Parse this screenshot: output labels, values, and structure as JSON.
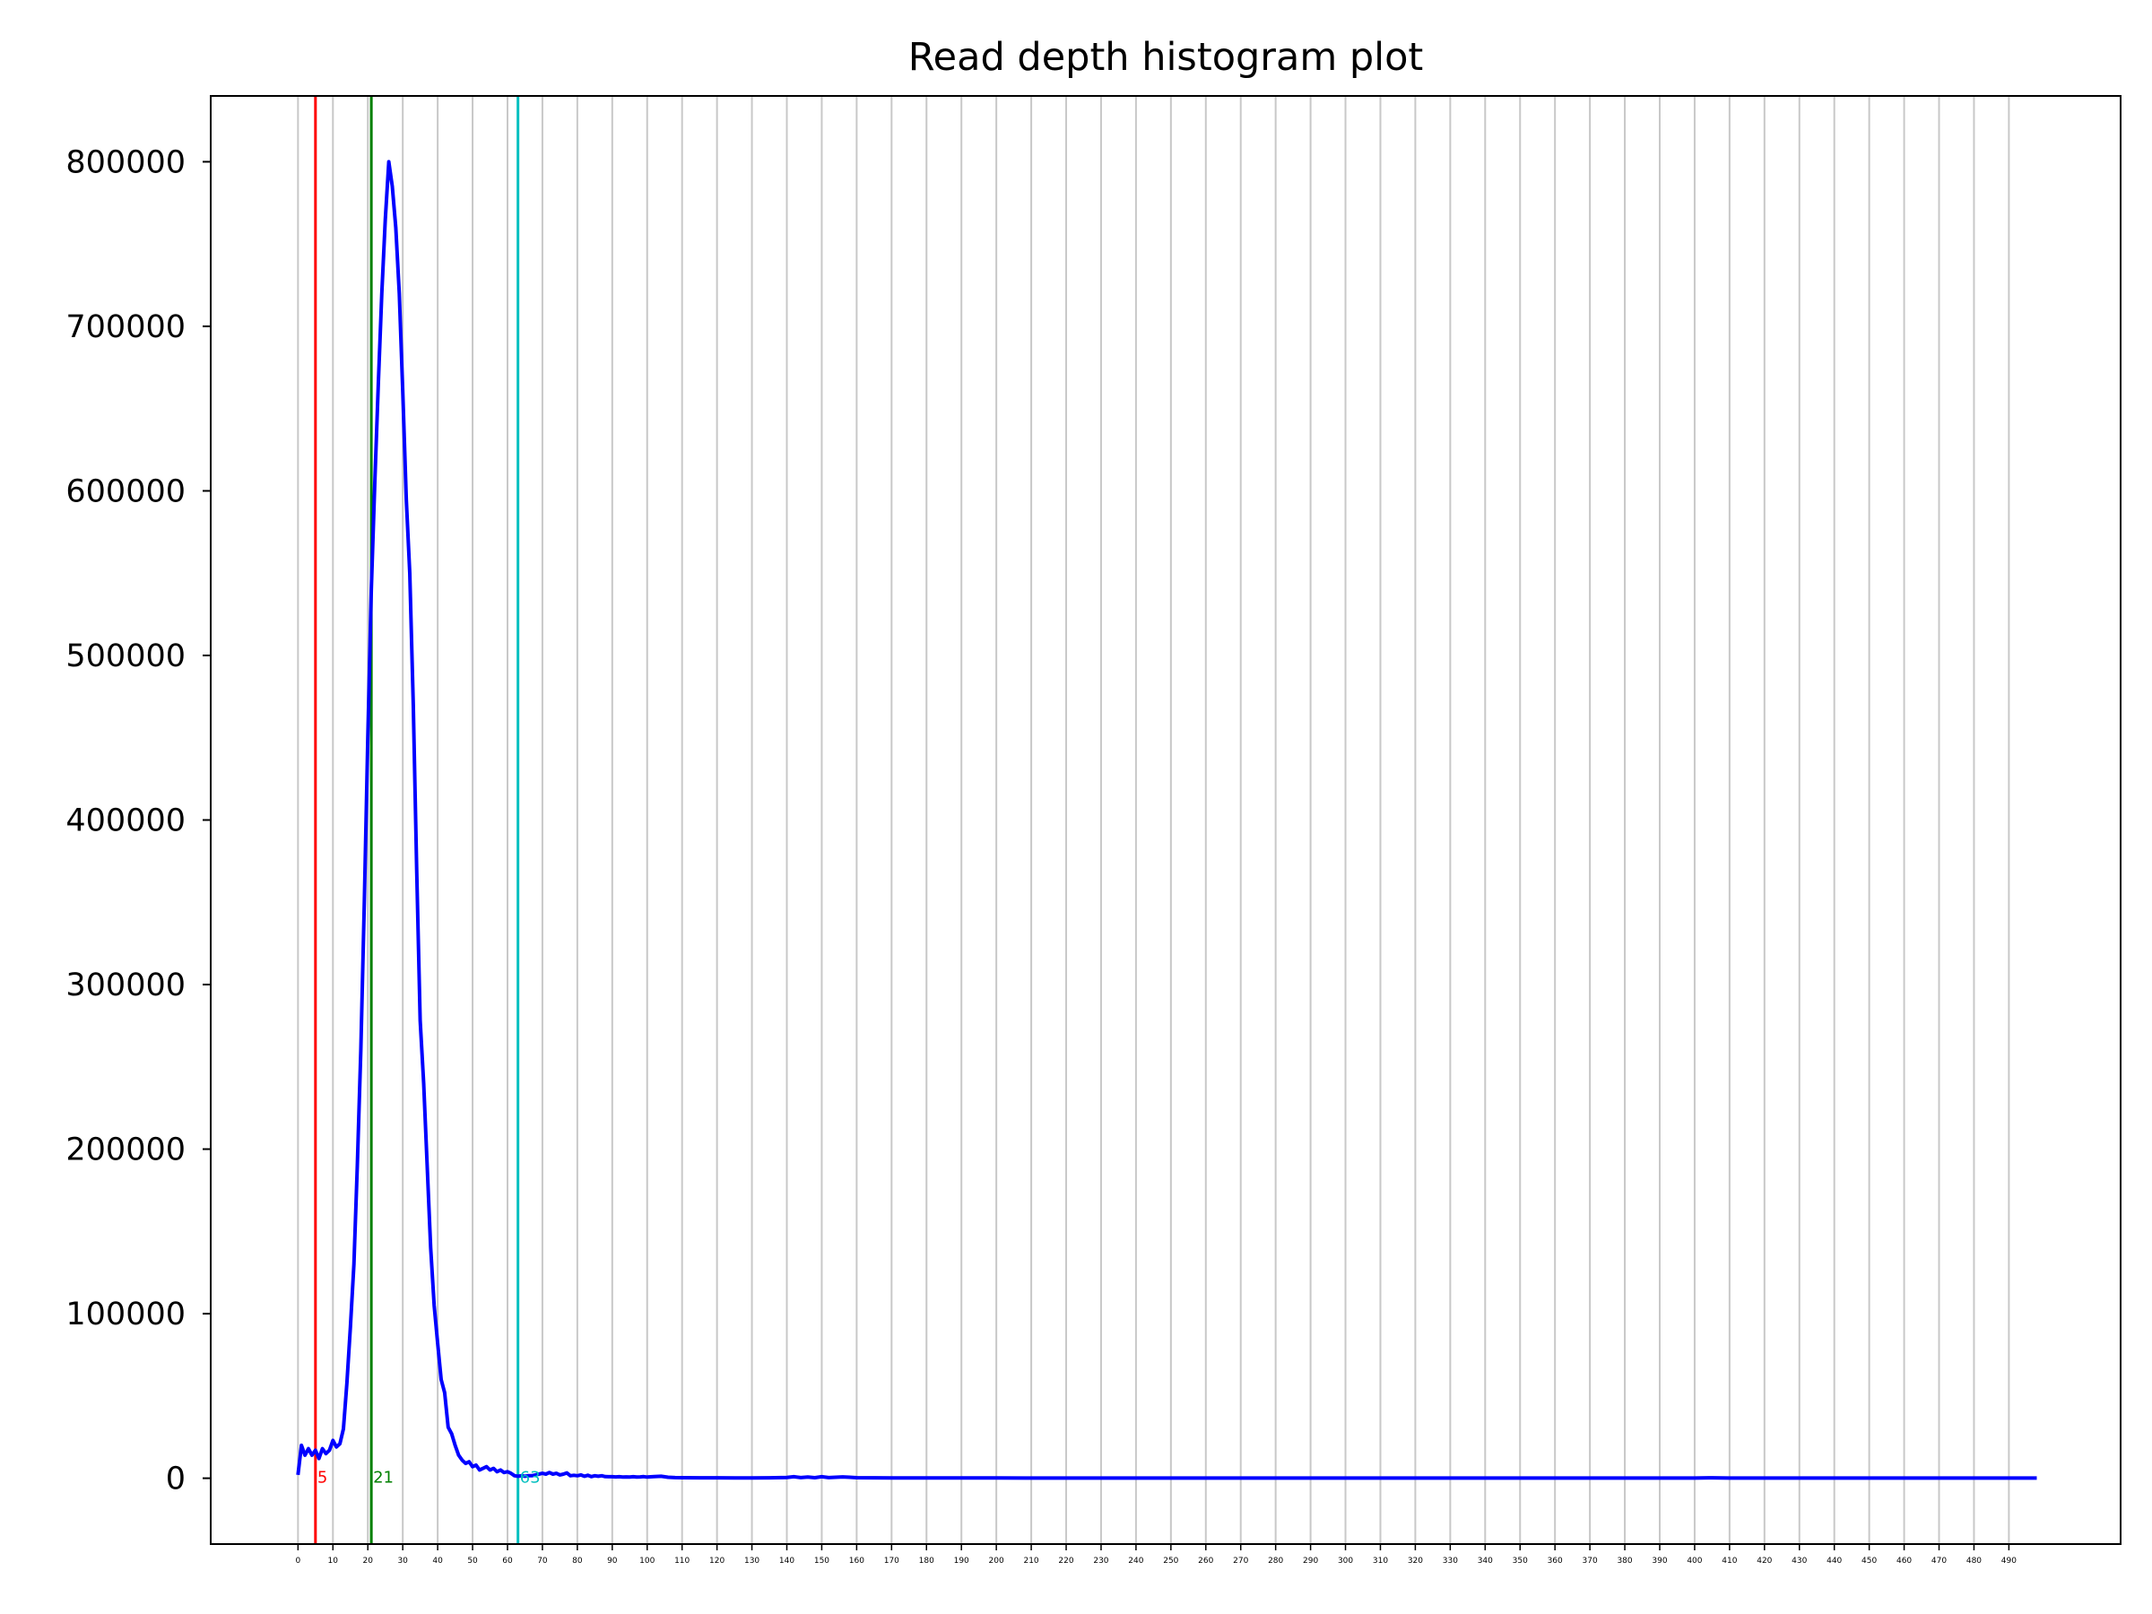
{
  "chart_data": {
    "type": "line",
    "title": "Read depth histogram plot",
    "xlabel": "",
    "ylabel": "",
    "xlim": [
      -25,
      522
    ],
    "ylim": [
      -40000,
      840000
    ],
    "grid": "x-only",
    "x_ticks": [
      0,
      10,
      20,
      30,
      40,
      50,
      60,
      70,
      80,
      90,
      100,
      110,
      120,
      130,
      140,
      150,
      160,
      170,
      180,
      190,
      200,
      210,
      220,
      230,
      240,
      250,
      260,
      270,
      280,
      290,
      300,
      310,
      320,
      330,
      340,
      350,
      360,
      370,
      380,
      390,
      400,
      410,
      420,
      430,
      440,
      450,
      460,
      470,
      480,
      490
    ],
    "y_ticks": [
      0,
      100000,
      200000,
      300000,
      400000,
      500000,
      600000,
      700000,
      800000
    ],
    "y_tick_labels": [
      "0",
      "100000",
      "200000",
      "300000",
      "400000",
      "500000",
      "600000",
      "700000",
      "800000"
    ],
    "series": [
      {
        "color": "#0000ff",
        "points": [
          [
            0,
            2000
          ],
          [
            1,
            20000
          ],
          [
            2,
            14000
          ],
          [
            3,
            18000
          ],
          [
            4,
            14000
          ],
          [
            5,
            17000
          ],
          [
            6,
            12000
          ],
          [
            7,
            18000
          ],
          [
            8,
            15000
          ],
          [
            9,
            17000
          ],
          [
            10,
            23000
          ],
          [
            11,
            19000
          ],
          [
            12,
            21000
          ],
          [
            13,
            30000
          ],
          [
            14,
            58000
          ],
          [
            15,
            92000
          ],
          [
            16,
            130000
          ],
          [
            17,
            190000
          ],
          [
            18,
            260000
          ],
          [
            19,
            350000
          ],
          [
            20,
            450000
          ],
          [
            21,
            540000
          ],
          [
            22,
            605000
          ],
          [
            23,
            665000
          ],
          [
            24,
            720000
          ],
          [
            25,
            765000
          ],
          [
            26,
            800000
          ],
          [
            27,
            785000
          ],
          [
            28,
            760000
          ],
          [
            29,
            720000
          ],
          [
            30,
            660000
          ],
          [
            31,
            595000
          ],
          [
            32,
            550000
          ],
          [
            33,
            470000
          ],
          [
            34,
            370000
          ],
          [
            35,
            278000
          ],
          [
            36,
            240000
          ],
          [
            37,
            190000
          ],
          [
            38,
            140000
          ],
          [
            39,
            105000
          ],
          [
            40,
            82000
          ],
          [
            41,
            60000
          ],
          [
            42,
            52000
          ],
          [
            43,
            31000
          ],
          [
            44,
            27000
          ],
          [
            45,
            20000
          ],
          [
            46,
            14000
          ],
          [
            47,
            11000
          ],
          [
            48,
            9000
          ],
          [
            49,
            10000
          ],
          [
            50,
            7000
          ],
          [
            51,
            8000
          ],
          [
            52,
            5000
          ],
          [
            53,
            6000
          ],
          [
            54,
            7000
          ],
          [
            55,
            5000
          ],
          [
            56,
            6000
          ],
          [
            57,
            4000
          ],
          [
            58,
            5000
          ],
          [
            59,
            3500
          ],
          [
            60,
            4000
          ],
          [
            61,
            3000
          ],
          [
            62,
            1500
          ],
          [
            63,
            1200
          ],
          [
            64,
            1500
          ],
          [
            65,
            1200
          ],
          [
            66,
            1600
          ],
          [
            67,
            1500
          ],
          [
            68,
            2000
          ],
          [
            69,
            2500
          ],
          [
            70,
            3000
          ],
          [
            71,
            2500
          ],
          [
            72,
            3500
          ],
          [
            73,
            2500
          ],
          [
            74,
            3000
          ],
          [
            75,
            2000
          ],
          [
            76,
            2500
          ],
          [
            77,
            3200
          ],
          [
            78,
            1500
          ],
          [
            79,
            1800
          ],
          [
            80,
            1500
          ],
          [
            81,
            2000
          ],
          [
            82,
            1200
          ],
          [
            83,
            1800
          ],
          [
            84,
            1000
          ],
          [
            85,
            1500
          ],
          [
            86,
            1200
          ],
          [
            87,
            1500
          ],
          [
            88,
            1000
          ],
          [
            89,
            900
          ],
          [
            90,
            900
          ],
          [
            91,
            800
          ],
          [
            92,
            900
          ],
          [
            93,
            700
          ],
          [
            94,
            800
          ],
          [
            95,
            700
          ],
          [
            96,
            900
          ],
          [
            97,
            700
          ],
          [
            98,
            800
          ],
          [
            99,
            1000
          ],
          [
            100,
            700
          ],
          [
            102,
            1000
          ],
          [
            104,
            1200
          ],
          [
            106,
            600
          ],
          [
            108,
            400
          ],
          [
            110,
            300
          ],
          [
            115,
            250
          ],
          [
            120,
            250
          ],
          [
            125,
            200
          ],
          [
            130,
            200
          ],
          [
            135,
            250
          ],
          [
            140,
            500
          ],
          [
            142,
            900
          ],
          [
            144,
            400
          ],
          [
            146,
            700
          ],
          [
            148,
            300
          ],
          [
            150,
            900
          ],
          [
            152,
            400
          ],
          [
            154,
            600
          ],
          [
            156,
            800
          ],
          [
            158,
            600
          ],
          [
            160,
            300
          ],
          [
            170,
            200
          ],
          [
            180,
            180
          ],
          [
            190,
            150
          ],
          [
            200,
            150
          ],
          [
            220,
            130
          ],
          [
            240,
            120
          ],
          [
            260,
            120
          ],
          [
            280,
            110
          ],
          [
            300,
            100
          ],
          [
            320,
            100
          ],
          [
            340,
            100
          ],
          [
            360,
            100
          ],
          [
            380,
            120
          ],
          [
            400,
            100
          ],
          [
            405,
            250
          ],
          [
            410,
            100
          ],
          [
            430,
            90
          ],
          [
            450,
            80
          ],
          [
            470,
            80
          ],
          [
            490,
            80
          ],
          [
            498,
            80
          ]
        ]
      }
    ],
    "vlines": [
      {
        "x": 5,
        "label": "5",
        "color": "#ff0000"
      },
      {
        "x": 21,
        "label": "21",
        "color": "#008000"
      },
      {
        "x": 63,
        "label": "63",
        "color": "#00bfbf"
      }
    ],
    "colors": {
      "grid": "#c8c8c8",
      "axes": "#000000"
    }
  }
}
